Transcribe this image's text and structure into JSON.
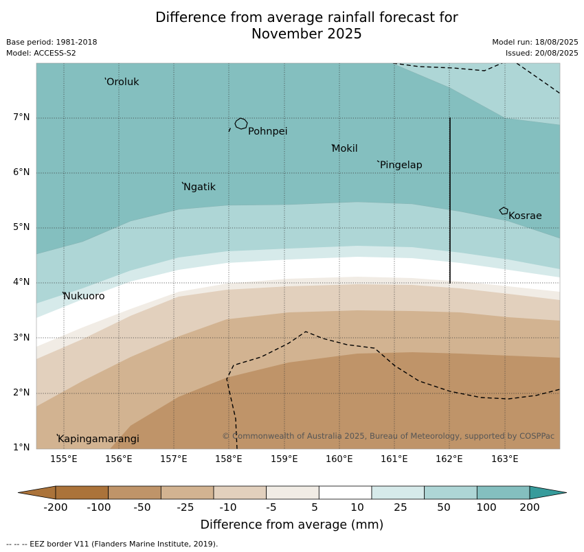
{
  "header": {
    "title_line1": "Difference from average rainfall forecast for",
    "title_line2": "November 2025",
    "base_period": "Base period: 1981-2018",
    "model": "Model: ACCESS-S2",
    "model_run": "Model run: 18/08/2025",
    "issued": "Issued: 20/08/2025"
  },
  "map": {
    "lon_ticks": [
      "155°E",
      "156°E",
      "157°E",
      "158°E",
      "159°E",
      "160°E",
      "161°E",
      "162°E",
      "163°E"
    ],
    "lat_ticks": [
      "7°N",
      "6°N",
      "5°N",
      "4°N",
      "3°N",
      "2°N",
      "1°N"
    ],
    "places": {
      "oroluk": "Oroluk",
      "pohnpei": "Pohnpei",
      "mokil": "Mokil",
      "pingelap": "Pingelap",
      "ngatik": "Ngatik",
      "kosrae": "Kosrae",
      "nukuoro": "Nukuoro",
      "kapingamarangi": "Kapingamarangi"
    },
    "copyright": "© Commonwealth of Australia 2025, Bureau of Meteorology, supported by COSPPac"
  },
  "colorbar": {
    "labels": [
      "-200",
      "-100",
      "-50",
      "-25",
      "-10",
      "-5",
      "5",
      "10",
      "25",
      "50",
      "100",
      "200"
    ],
    "colors": [
      "#AB733A",
      "#BF9469",
      "#D2B391",
      "#E2D0BD",
      "#F1ECE5",
      "#FFFFFF",
      "#D6EAEA",
      "#AED6D6",
      "#84BFBF",
      "#59AAAA",
      "#379B9B"
    ],
    "title": "Difference from average (mm)"
  },
  "footnote": "--  --  -- EEZ border V11 (Flanders Marine Institute, 2019)."
}
